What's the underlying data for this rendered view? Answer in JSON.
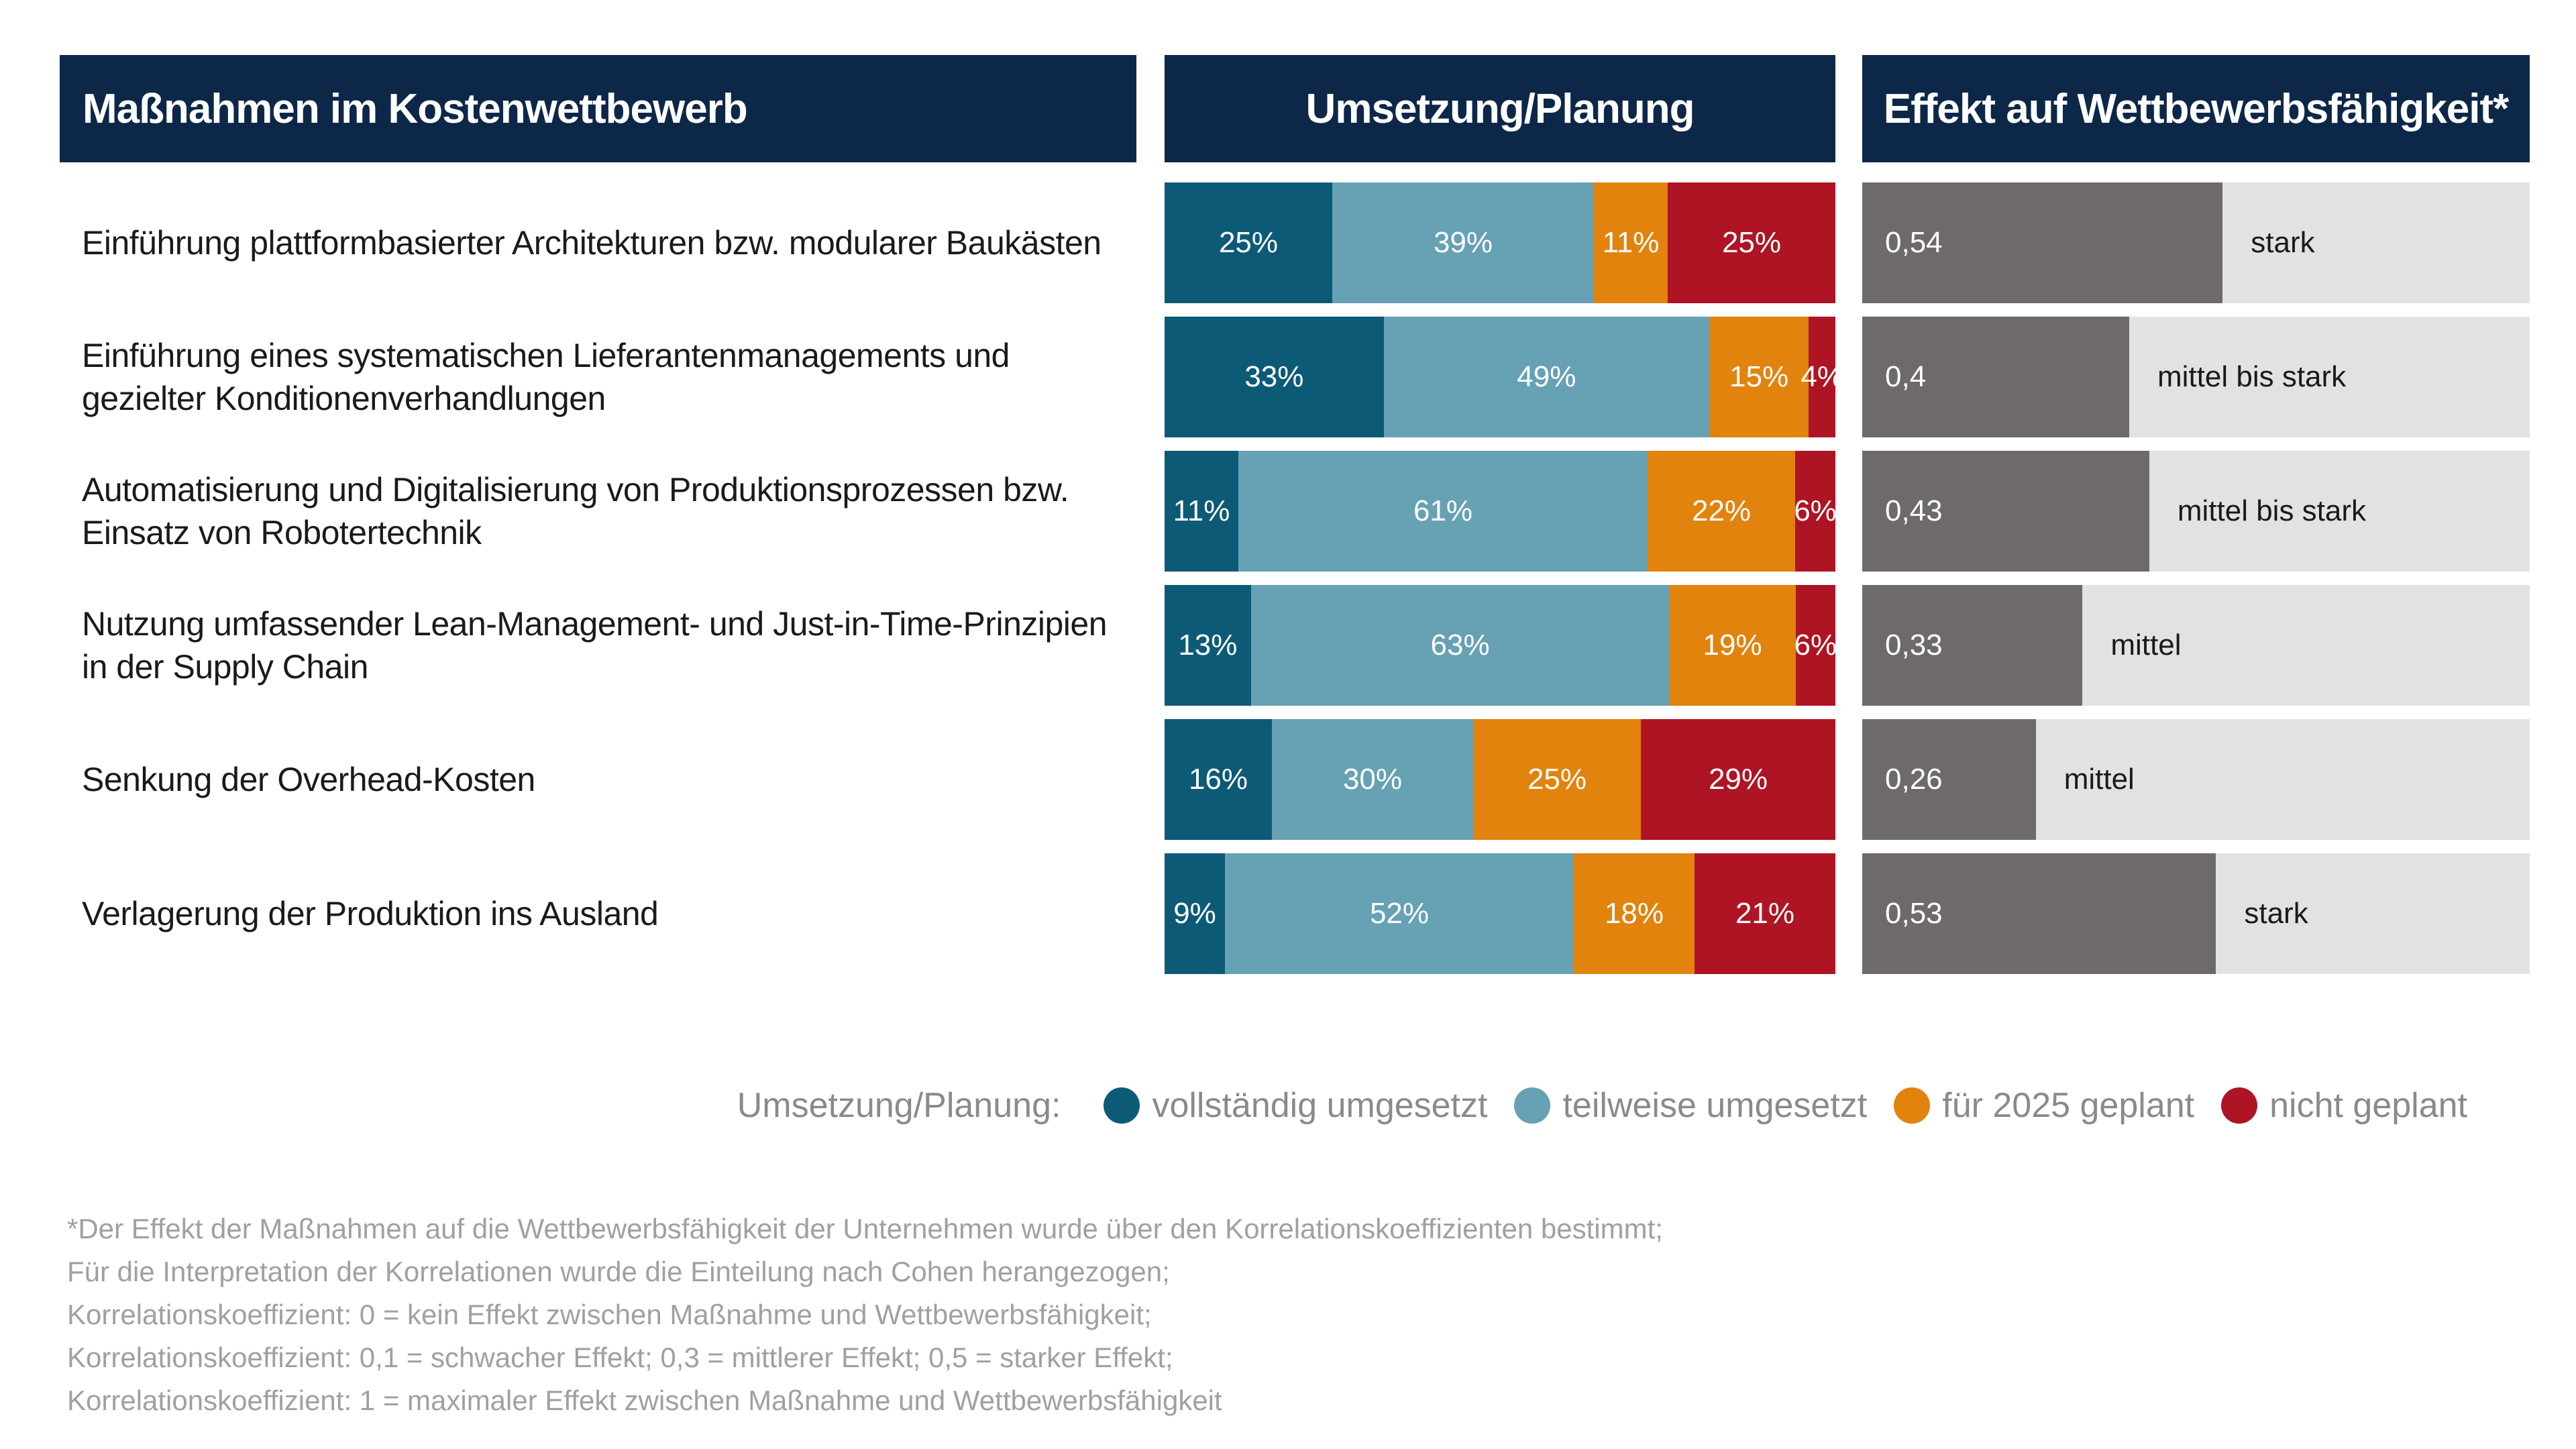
{
  "headers": {
    "left": "Maßnahmen im Kostenwettbewerb",
    "middle": "Umsetzung/Planung",
    "right": "Effekt auf Wettbewerbsfähigkeit*"
  },
  "colors": {
    "header_bg": "#0d2748",
    "vollstaendig": "#0d5a77",
    "teilweise": "#66a1b4",
    "geplant": "#e1830d",
    "nicht": "#ae1424",
    "effect_fill": "#6e6a69",
    "effect_track": "#e2e2e2"
  },
  "chart_data": [
    {
      "type": "bar",
      "orientation": "horizontal",
      "stacked": true,
      "title": "Umsetzung/Planung",
      "categories": [
        "Einführung plattformbasierter Architekturen bzw. modularer Baukästen",
        "Einführung eines systematischen Lieferantenmanagements und gezielter Konditionenverhandlungen",
        "Automatisierung und Digitalisierung von Produktionsprozessen bzw. Einsatz von Robotertechnik",
        "Nutzung umfassender Lean-Management- und Just-in-Time-Prinzipien in der Supply Chain",
        "Senkung der Overhead-Kosten",
        "Verlagerung der Produktion ins Ausland"
      ],
      "series": [
        {
          "name": "vollständig umgesetzt",
          "color": "#0d5a77",
          "values": [
            25,
            33,
            11,
            13,
            16,
            9
          ],
          "labels": [
            "25%",
            "33%",
            "11%",
            "13%",
            "16%",
            "9%"
          ]
        },
        {
          "name": "teilweise umgesetzt",
          "color": "#66a1b4",
          "values": [
            39,
            49,
            61,
            63,
            30,
            52
          ],
          "labels": [
            "39%",
            "49%",
            "61%",
            "63%",
            "30%",
            "52%"
          ]
        },
        {
          "name": "für 2025 geplant",
          "color": "#e1830d",
          "values": [
            11,
            15,
            22,
            19,
            25,
            18
          ],
          "labels": [
            "11%",
            "15%",
            "22%",
            "19%",
            "25%",
            "18%"
          ]
        },
        {
          "name": "nicht geplant",
          "color": "#ae1424",
          "values": [
            25,
            4,
            6,
            6,
            29,
            21
          ],
          "labels": [
            "25%",
            "4%",
            "6%",
            "6%",
            "29%",
            "21%"
          ]
        }
      ],
      "legend_title": "Umsetzung/Planung:",
      "legend_position": "bottom-right",
      "xlim": [
        0,
        100
      ]
    },
    {
      "type": "bar",
      "orientation": "horizontal",
      "title": "Effekt auf Wettbewerbsfähigkeit*",
      "values": [
        0.54,
        0.4,
        0.43,
        0.33,
        0.26,
        0.53
      ],
      "value_labels": [
        "0,54",
        "0,4",
        "0,43",
        "0,33",
        "0,26",
        "0,53"
      ],
      "effect_labels": [
        "stark",
        "mittel bis stark",
        "mittel bis stark",
        "mittel",
        "mittel",
        "stark"
      ],
      "xlim": [
        0,
        1
      ]
    }
  ],
  "footnote": [
    "*Der Effekt der Maßnahmen auf die Wettbewerbsfähigkeit der Unternehmen wurde über den Korrelationskoeffizienten bestimmt;",
    "Für die Interpretation der Korrelationen wurde die Einteilung nach Cohen herangezogen;",
    "Korrelationskoeffizient: 0 = kein Effekt zwischen Maßnahme und Wettbewerbsfähigkeit;",
    "Korrelationskoeffizient: 0,1 = schwacher Effekt; 0,3 = mittlerer Effekt; 0,5 = starker Effekt;",
    "Korrelationskoeffizient: 1 = maximaler Effekt zwischen Maßnahme und Wettbewerbsfähigkeit"
  ]
}
